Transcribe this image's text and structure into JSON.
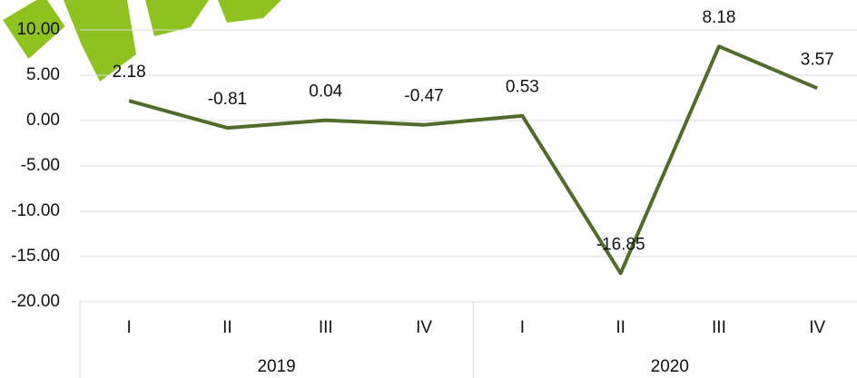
{
  "chart_data": {
    "type": "line",
    "categories": [
      "I",
      "II",
      "III",
      "IV",
      "I",
      "II",
      "III",
      "IV"
    ],
    "groups": [
      "2019",
      "2020"
    ],
    "series": [
      {
        "color": "#526b2a",
        "values": [
          2.18,
          -0.81,
          0.04,
          -0.47,
          0.53,
          -16.85,
          8.18,
          3.57
        ]
      }
    ],
    "ylim": [
      -20,
      10
    ],
    "yticks": [
      {
        "value": -20,
        "label": "-20.00"
      },
      {
        "value": -15,
        "label": "-15.00"
      },
      {
        "value": -10,
        "label": "-10.00"
      },
      {
        "value": -5,
        "label": "-5.00"
      },
      {
        "value": 0,
        "label": "0.00"
      },
      {
        "value": 5,
        "label": "5.00"
      },
      {
        "value": 10,
        "label": "10.00"
      }
    ],
    "grid": true
  }
}
